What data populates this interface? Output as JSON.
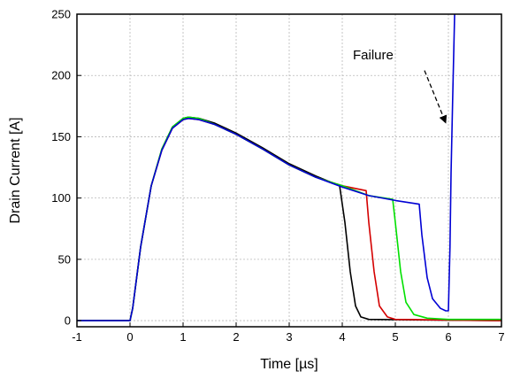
{
  "chart_data": {
    "type": "line",
    "xlabel": "Time [µs]",
    "ylabel": "Drain Current [A]",
    "xlim": [
      -1,
      7
    ],
    "ylim": [
      -5,
      250
    ],
    "xticks": [
      -1,
      0,
      1,
      2,
      3,
      4,
      5,
      6,
      7
    ],
    "yticks": [
      0,
      50,
      100,
      150,
      200,
      250
    ],
    "grid": true,
    "annotations": [
      {
        "text": "Failure",
        "arrow_to": {
          "x": 6.0,
          "y": 157
        }
      }
    ],
    "series": [
      {
        "color": "#000000",
        "points": [
          [
            -1,
            0
          ],
          [
            0,
            0
          ],
          [
            0.05,
            10
          ],
          [
            0.2,
            60
          ],
          [
            0.4,
            110
          ],
          [
            0.6,
            140
          ],
          [
            0.8,
            158
          ],
          [
            1.0,
            165
          ],
          [
            1.1,
            166
          ],
          [
            1.3,
            165
          ],
          [
            1.6,
            161
          ],
          [
            2.0,
            153
          ],
          [
            2.5,
            141
          ],
          [
            3.0,
            128
          ],
          [
            3.5,
            118
          ],
          [
            3.95,
            110
          ],
          [
            4.05,
            80
          ],
          [
            4.15,
            40
          ],
          [
            4.25,
            12
          ],
          [
            4.35,
            3
          ],
          [
            4.5,
            1
          ],
          [
            7,
            0
          ]
        ]
      },
      {
        "color": "#d40000",
        "points": [
          [
            -1,
            0
          ],
          [
            0,
            0
          ],
          [
            0.05,
            10
          ],
          [
            0.2,
            60
          ],
          [
            0.4,
            110
          ],
          [
            0.6,
            139
          ],
          [
            0.8,
            157
          ],
          [
            1.0,
            164
          ],
          [
            1.1,
            165
          ],
          [
            1.3,
            164
          ],
          [
            1.6,
            160
          ],
          [
            2.0,
            152
          ],
          [
            2.5,
            140
          ],
          [
            3.0,
            127
          ],
          [
            3.5,
            117
          ],
          [
            4.0,
            110
          ],
          [
            4.45,
            106
          ],
          [
            4.5,
            80
          ],
          [
            4.6,
            40
          ],
          [
            4.7,
            12
          ],
          [
            4.85,
            3
          ],
          [
            5.0,
            1
          ],
          [
            7,
            0
          ]
        ]
      },
      {
        "color": "#00e000",
        "points": [
          [
            -1,
            0
          ],
          [
            0,
            0
          ],
          [
            0.05,
            10
          ],
          [
            0.2,
            60
          ],
          [
            0.4,
            110
          ],
          [
            0.6,
            140
          ],
          [
            0.8,
            158
          ],
          [
            1.0,
            165
          ],
          [
            1.1,
            166
          ],
          [
            1.3,
            165
          ],
          [
            1.6,
            160
          ],
          [
            2.0,
            152
          ],
          [
            2.5,
            140
          ],
          [
            3.0,
            127
          ],
          [
            3.5,
            117
          ],
          [
            4.0,
            110
          ],
          [
            4.5,
            102
          ],
          [
            4.95,
            99
          ],
          [
            5.0,
            80
          ],
          [
            5.1,
            40
          ],
          [
            5.2,
            15
          ],
          [
            5.35,
            5
          ],
          [
            5.6,
            2
          ],
          [
            6.0,
            1
          ],
          [
            7,
            1
          ]
        ]
      },
      {
        "color": "#0000d4",
        "points": [
          [
            -1,
            0
          ],
          [
            0,
            0
          ],
          [
            0.05,
            10
          ],
          [
            0.2,
            60
          ],
          [
            0.4,
            110
          ],
          [
            0.6,
            139
          ],
          [
            0.8,
            157
          ],
          [
            1.0,
            164
          ],
          [
            1.1,
            165
          ],
          [
            1.3,
            164
          ],
          [
            1.6,
            160
          ],
          [
            2.0,
            152
          ],
          [
            2.5,
            140
          ],
          [
            3.0,
            127
          ],
          [
            3.5,
            117
          ],
          [
            4.0,
            109
          ],
          [
            4.5,
            102
          ],
          [
            5.0,
            98
          ],
          [
            5.45,
            95
          ],
          [
            5.5,
            70
          ],
          [
            5.6,
            35
          ],
          [
            5.7,
            18
          ],
          [
            5.85,
            10
          ],
          [
            5.95,
            8
          ],
          [
            6.0,
            8
          ],
          [
            6.03,
            60
          ],
          [
            6.05,
            120
          ],
          [
            6.08,
            180
          ],
          [
            6.12,
            255
          ]
        ]
      }
    ]
  }
}
